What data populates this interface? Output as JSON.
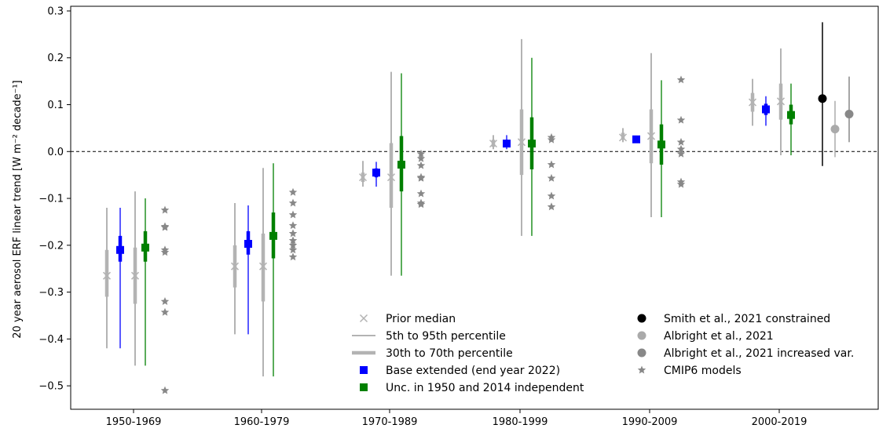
{
  "chart_data": {
    "type": "scatter",
    "title": "",
    "ylabel": "20 year aerosol ERF linear trend [W m⁻² decade⁻¹]",
    "xlabel": "",
    "ylim": [
      -0.55,
      0.31
    ],
    "yticks": [
      -0.5,
      -0.4,
      -0.3,
      -0.2,
      -0.1,
      0.0,
      0.1,
      0.2,
      0.3
    ],
    "ytick_labels": [
      "−0.5",
      "−0.4",
      "−0.3",
      "−0.2",
      "−0.1",
      "0.0",
      "0.1",
      "0.2",
      "0.3"
    ],
    "categories": [
      "1950-1969",
      "1960-1979",
      "1970-1989",
      "1980-1999",
      "1990-2009",
      "2000-2019"
    ],
    "zero_line": "dashed",
    "grid": false,
    "legend_placement": "bottom-center",
    "colors": {
      "prior": "#b3b3b3",
      "base": "#0000ff",
      "unc": "#008000",
      "smith": "#000000",
      "albright": "#aaaaaa",
      "albright_var": "#888888",
      "cmip6": "#888888",
      "axis": "#000000"
    },
    "series": [
      {
        "name": "Base extended (end year 2022)",
        "prior": [
          {
            "median": -0.265,
            "p5": -0.42,
            "p30": -0.31,
            "p70": -0.21,
            "p95": -0.12
          },
          {
            "median": -0.245,
            "p5": -0.39,
            "p30": -0.29,
            "p70": -0.2,
            "p95": -0.11
          },
          {
            "median": -0.055,
            "p5": -0.075,
            "p30": -0.065,
            "p70": -0.045,
            "p95": -0.02
          },
          {
            "median": 0.017,
            "p5": 0.005,
            "p30": 0.01,
            "p70": 0.025,
            "p95": 0.035
          },
          {
            "median": 0.03,
            "p5": 0.02,
            "p30": 0.025,
            "p70": 0.04,
            "p95": 0.05
          },
          {
            "median": 0.105,
            "p5": 0.055,
            "p30": 0.085,
            "p70": 0.125,
            "p95": 0.155
          }
        ],
        "posterior": [
          {
            "median": -0.21,
            "p5": -0.42,
            "p30": -0.235,
            "p70": -0.18,
            "p95": -0.12
          },
          {
            "median": -0.197,
            "p5": -0.39,
            "p30": -0.22,
            "p70": -0.17,
            "p95": -0.115
          },
          {
            "median": -0.045,
            "p5": -0.075,
            "p30": -0.055,
            "p70": -0.036,
            "p95": -0.022
          },
          {
            "median": 0.017,
            "p5": 0.005,
            "p30": 0.01,
            "p70": 0.025,
            "p95": 0.035
          },
          {
            "median": 0.026,
            "p5": 0.02,
            "p30": 0.022,
            "p70": 0.031,
            "p95": 0.034
          },
          {
            "median": 0.09,
            "p5": 0.055,
            "p30": 0.078,
            "p70": 0.102,
            "p95": 0.118
          }
        ]
      },
      {
        "name": "Unc. in 1950 and 2014 independent",
        "prior": [
          {
            "median": -0.265,
            "p5": -0.457,
            "p30": -0.325,
            "p70": -0.205,
            "p95": -0.085
          },
          {
            "median": -0.245,
            "p5": -0.48,
            "p30": -0.32,
            "p70": -0.175,
            "p95": -0.035
          },
          {
            "median": -0.055,
            "p5": -0.265,
            "p30": -0.12,
            "p70": 0.018,
            "p95": 0.17
          },
          {
            "median": 0.02,
            "p5": -0.18,
            "p30": -0.05,
            "p70": 0.09,
            "p95": 0.24
          },
          {
            "median": 0.033,
            "p5": -0.14,
            "p30": -0.025,
            "p70": 0.09,
            "p95": 0.21
          },
          {
            "median": 0.107,
            "p5": -0.008,
            "p30": 0.068,
            "p70": 0.145,
            "p95": 0.22
          }
        ],
        "posterior": [
          {
            "median": -0.205,
            "p5": -0.457,
            "p30": -0.235,
            "p70": -0.17,
            "p95": -0.1
          },
          {
            "median": -0.18,
            "p5": -0.48,
            "p30": -0.228,
            "p70": -0.13,
            "p95": -0.025
          },
          {
            "median": -0.028,
            "p5": -0.265,
            "p30": -0.085,
            "p70": 0.033,
            "p95": 0.167
          },
          {
            "median": 0.017,
            "p5": -0.18,
            "p30": -0.038,
            "p70": 0.073,
            "p95": 0.2
          },
          {
            "median": 0.015,
            "p5": -0.14,
            "p30": -0.028,
            "p70": 0.058,
            "p95": 0.152
          },
          {
            "median": 0.078,
            "p5": -0.008,
            "p30": 0.058,
            "p70": 0.1,
            "p95": 0.145
          }
        ]
      }
    ],
    "cmip6": [
      [
        -0.125,
        -0.16,
        -0.162,
        -0.21,
        -0.215,
        -0.32,
        -0.343,
        -0.51
      ],
      [
        -0.087,
        -0.11,
        -0.135,
        -0.158,
        -0.175,
        -0.19,
        -0.2,
        -0.21,
        -0.225
      ],
      [
        -0.005,
        -0.015,
        -0.03,
        -0.055,
        -0.057,
        -0.09,
        -0.11,
        -0.113
      ],
      [
        0.03,
        0.025,
        -0.028,
        -0.057,
        -0.095,
        -0.118
      ],
      [
        0.153,
        0.067,
        0.02,
        0.005,
        -0.005,
        -0.065,
        -0.07
      ],
      []
    ],
    "smith_2021": {
      "median": 0.113,
      "p5": -0.031,
      "p95": 0.276
    },
    "albright_2021": {
      "median": 0.048,
      "p5": -0.012,
      "p95": 0.108
    },
    "albright_2021_var": {
      "median": 0.08,
      "p5": 0.02,
      "p95": 0.16
    },
    "legend": {
      "left": [
        "Prior median",
        "5th to 95th percentile",
        "30th to 70th percentile",
        "Base extended (end year 2022)",
        "Unc. in 1950 and 2014 independent"
      ],
      "right": [
        "Smith et al., 2021 constrained",
        "Albright et al., 2021",
        "Albright et al., 2021 increased var.",
        "CMIP6 models"
      ]
    }
  }
}
